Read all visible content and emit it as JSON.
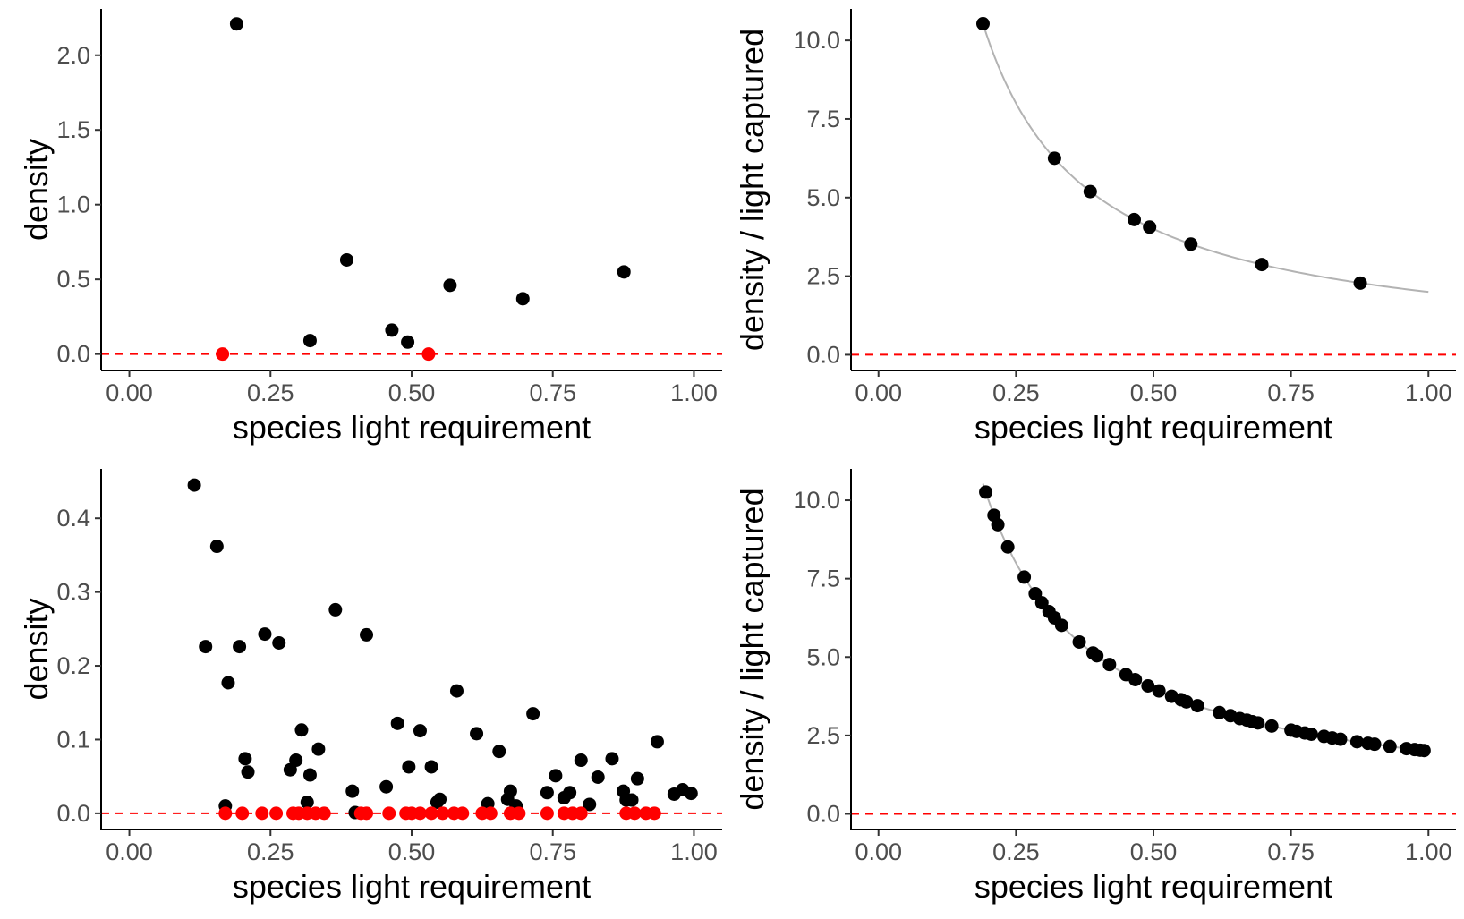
{
  "chart_data": [
    {
      "type": "scatter",
      "xlabel": "species light requirement",
      "ylabel": "density",
      "xlim": [
        -0.05,
        1.05
      ],
      "ylim": [
        -0.11,
        2.31
      ],
      "x_ticks": [
        "0.00",
        "0.25",
        "0.50",
        "0.75",
        "1.00"
      ],
      "x_tick_values": [
        0,
        0.25,
        0.5,
        0.75,
        1.0
      ],
      "y_ticks": [
        "0.0",
        "0.5",
        "1.0",
        "1.5",
        "2.0"
      ],
      "y_tick_values": [
        0,
        0.5,
        1.0,
        1.5,
        2.0
      ],
      "reference_line": {
        "y": 0,
        "color": "#ff0000",
        "style": "dashed"
      },
      "colors": {
        "positive": "#000000",
        "zero": "#ff0000"
      },
      "series": [
        {
          "role": "positive",
          "x": [
            0.19,
            0.32,
            0.385,
            0.465,
            0.493,
            0.568,
            0.697,
            0.876
          ],
          "y": [
            2.21,
            0.09,
            0.63,
            0.16,
            0.08,
            0.46,
            0.37,
            0.55
          ]
        },
        {
          "role": "zero",
          "x": [
            0.165,
            0.53
          ],
          "y": [
            0,
            0
          ]
        }
      ]
    },
    {
      "type": "scatter",
      "xlabel": "species light requirement",
      "ylabel": "density / light captured",
      "xlim": [
        -0.05,
        1.05
      ],
      "ylim": [
        -0.5,
        11.0
      ],
      "x_ticks": [
        "0.00",
        "0.25",
        "0.50",
        "0.75",
        "1.00"
      ],
      "x_tick_values": [
        0,
        0.25,
        0.5,
        0.75,
        1.0
      ],
      "y_ticks": [
        "0.0",
        "2.5",
        "5.0",
        "7.5",
        "10.0"
      ],
      "y_tick_values": [
        0,
        2.5,
        5.0,
        7.5,
        10.0
      ],
      "reference_line": {
        "y": 0,
        "color": "#ff0000",
        "style": "dashed"
      },
      "fit_curve": {
        "formula": "y = 2 / x",
        "x_range": [
          0.19,
          1.0
        ],
        "color": "#b3b3b3"
      },
      "colors": {
        "positive": "#000000"
      },
      "series": [
        {
          "role": "positive",
          "x": [
            0.19,
            0.32,
            0.385,
            0.465,
            0.493,
            0.568,
            0.697,
            0.876
          ],
          "y": [
            10.53,
            6.25,
            5.19,
            4.3,
            4.06,
            3.52,
            2.87,
            2.28
          ]
        }
      ]
    },
    {
      "type": "scatter",
      "xlabel": "species light requirement",
      "ylabel": "density",
      "xlim": [
        -0.05,
        1.05
      ],
      "ylim": [
        -0.022,
        0.467
      ],
      "x_ticks": [
        "0.00",
        "0.25",
        "0.50",
        "0.75",
        "1.00"
      ],
      "x_tick_values": [
        0,
        0.25,
        0.5,
        0.75,
        1.0
      ],
      "y_ticks": [
        "0.0",
        "0.1",
        "0.2",
        "0.3",
        "0.4"
      ],
      "y_tick_values": [
        0,
        0.1,
        0.2,
        0.3,
        0.4
      ],
      "reference_line": {
        "y": 0,
        "color": "#ff0000",
        "style": "dashed"
      },
      "colors": {
        "positive": "#000000",
        "zero": "#ff0000"
      },
      "series": [
        {
          "role": "positive",
          "x": [
            0.115,
            0.135,
            0.155,
            0.17,
            0.175,
            0.195,
            0.205,
            0.21,
            0.24,
            0.265,
            0.285,
            0.295,
            0.305,
            0.315,
            0.32,
            0.335,
            0.365,
            0.395,
            0.4,
            0.42,
            0.455,
            0.475,
            0.495,
            0.515,
            0.535,
            0.545,
            0.55,
            0.58,
            0.615,
            0.635,
            0.655,
            0.67,
            0.675,
            0.685,
            0.715,
            0.74,
            0.755,
            0.77,
            0.78,
            0.8,
            0.815,
            0.83,
            0.855,
            0.875,
            0.88,
            0.89,
            0.9,
            0.935,
            0.965,
            0.98,
            0.995
          ],
          "y": [
            0.445,
            0.226,
            0.362,
            0.01,
            0.177,
            0.226,
            0.074,
            0.056,
            0.243,
            0.231,
            0.059,
            0.072,
            0.113,
            0.015,
            0.052,
            0.087,
            0.276,
            0.03,
            0.001,
            0.242,
            0.036,
            0.122,
            0.063,
            0.112,
            0.063,
            0.015,
            0.019,
            0.166,
            0.108,
            0.013,
            0.084,
            0.019,
            0.03,
            0.01,
            0.135,
            0.028,
            0.051,
            0.021,
            0.028,
            0.072,
            0.012,
            0.049,
            0.074,
            0.03,
            0.018,
            0.018,
            0.047,
            0.097,
            0.026,
            0.032,
            0.027
          ]
        },
        {
          "role": "zero",
          "x": [
            0.17,
            0.2,
            0.235,
            0.26,
            0.29,
            0.3,
            0.315,
            0.33,
            0.345,
            0.41,
            0.42,
            0.46,
            0.49,
            0.5,
            0.515,
            0.535,
            0.555,
            0.575,
            0.59,
            0.625,
            0.64,
            0.675,
            0.69,
            0.74,
            0.77,
            0.785,
            0.8,
            0.88,
            0.895,
            0.915,
            0.93
          ],
          "y": [
            0,
            0,
            0,
            0,
            0,
            0,
            0,
            0,
            0,
            0,
            0,
            0,
            0,
            0,
            0,
            0,
            0,
            0,
            0,
            0,
            0,
            0,
            0,
            0,
            0,
            0,
            0,
            0,
            0,
            0,
            0
          ]
        }
      ]
    },
    {
      "type": "scatter",
      "xlabel": "species light requirement",
      "ylabel": "density / light captured",
      "xlim": [
        -0.05,
        1.05
      ],
      "ylim": [
        -0.5,
        11.0
      ],
      "x_ticks": [
        "0.00",
        "0.25",
        "0.50",
        "0.75",
        "1.00"
      ],
      "x_tick_values": [
        0,
        0.25,
        0.5,
        0.75,
        1.0
      ],
      "y_ticks": [
        "0.0",
        "2.5",
        "5.0",
        "7.5",
        "10.0"
      ],
      "y_tick_values": [
        0,
        2.5,
        5.0,
        7.5,
        10.0
      ],
      "reference_line": {
        "y": 0,
        "color": "#ff0000",
        "style": "dashed"
      },
      "fit_curve": {
        "formula": "y = 2 / x",
        "x_range": [
          0.19,
          1.0
        ],
        "color": "#b3b3b3"
      },
      "colors": {
        "positive": "#000000"
      },
      "series": [
        {
          "role": "positive",
          "x": [
            0.195,
            0.21,
            0.217,
            0.235,
            0.265,
            0.285,
            0.297,
            0.31,
            0.32,
            0.333,
            0.365,
            0.39,
            0.397,
            0.42,
            0.45,
            0.467,
            0.49,
            0.51,
            0.533,
            0.55,
            0.56,
            0.58,
            0.62,
            0.64,
            0.657,
            0.67,
            0.68,
            0.69,
            0.715,
            0.75,
            0.76,
            0.775,
            0.787,
            0.81,
            0.825,
            0.84,
            0.87,
            0.89,
            0.902,
            0.93,
            0.96,
            0.975,
            0.985,
            0.992
          ],
          "y": [
            10.26,
            9.52,
            9.22,
            8.51,
            7.55,
            7.02,
            6.73,
            6.45,
            6.25,
            6.01,
            5.48,
            5.13,
            5.04,
            4.76,
            4.44,
            4.28,
            4.08,
            3.92,
            3.75,
            3.64,
            3.57,
            3.45,
            3.23,
            3.13,
            3.04,
            2.99,
            2.94,
            2.9,
            2.8,
            2.67,
            2.63,
            2.58,
            2.54,
            2.47,
            2.42,
            2.38,
            2.3,
            2.25,
            2.22,
            2.15,
            2.08,
            2.05,
            2.03,
            2.02
          ]
        }
      ]
    }
  ]
}
